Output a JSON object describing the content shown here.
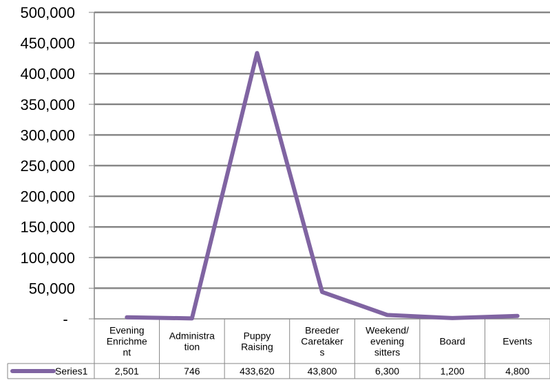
{
  "chart_data": {
    "type": "line",
    "categories": [
      [
        "Evening",
        "Enrichme",
        "nt"
      ],
      [
        "Administra",
        "tion"
      ],
      [
        "Puppy",
        "Raising"
      ],
      [
        "Breeder",
        "Caretaker",
        "s"
      ],
      [
        "Weekend/",
        "evening",
        "sitters"
      ],
      [
        "Board"
      ],
      [
        "Events"
      ]
    ],
    "series": [
      {
        "name": "Series1",
        "values": [
          2501,
          746,
          433620,
          43800,
          6300,
          1200,
          4800
        ],
        "value_labels": [
          "2,501",
          "746",
          "433,620",
          "43,800",
          "6,300",
          "1,200",
          "4,800"
        ]
      }
    ],
    "ylim": [
      0,
      500000
    ],
    "y_ticks": [
      0,
      50000,
      100000,
      150000,
      200000,
      250000,
      300000,
      350000,
      400000,
      450000,
      500000
    ],
    "y_tick_labels": [
      "-",
      "50,000",
      "100,000",
      "150,000",
      "200,000",
      "250,000",
      "300,000",
      "350,000",
      "400,000",
      "450,000",
      "500,000"
    ],
    "grid": true,
    "data_table": true,
    "colors": {
      "series": "#8064A2",
      "grid": "#868686",
      "axis": "#868686"
    }
  }
}
